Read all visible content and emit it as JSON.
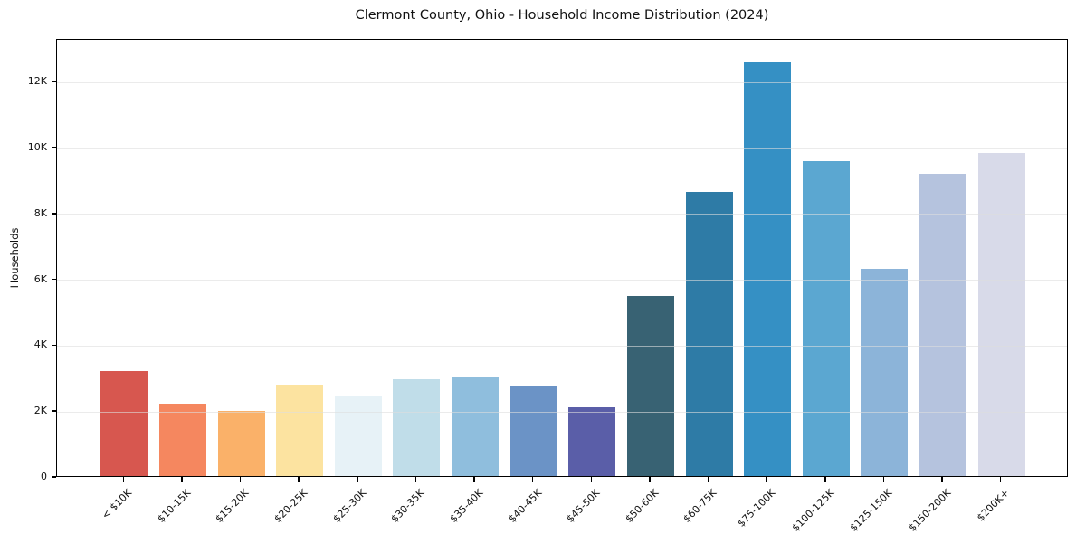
{
  "chart_data": {
    "type": "bar",
    "title": "Clermont County, Ohio - Household Income Distribution (2024)",
    "xlabel": "",
    "ylabel": "Households",
    "categories": [
      "< $10K",
      "$10-15K",
      "$15-20K",
      "$20-25K",
      "$25-30K",
      "$30-35K",
      "$35-40K",
      "$40-45K",
      "$45-50K",
      "$50-60K",
      "$60-75K",
      "$75-100K",
      "$100-125K",
      "$125-150K",
      "$150-200K",
      "$200K+"
    ],
    "values": [
      3180,
      2200,
      1990,
      2780,
      2450,
      2940,
      3000,
      2760,
      2090,
      5460,
      8620,
      12590,
      9560,
      6280,
      9170,
      9820
    ],
    "bar_colors": [
      "#d7574f",
      "#f5875f",
      "#fab169",
      "#fce3a0",
      "#e7f2f7",
      "#c0dde9",
      "#8fbedd",
      "#6b93c6",
      "#5a5ea8",
      "#386273",
      "#2e7ba6",
      "#3590c4",
      "#5ba7d1",
      "#8cb4d9",
      "#b5c3de",
      "#d8dae9"
    ],
    "ylim": [
      0,
      13300
    ],
    "yticks": {
      "values": [
        0,
        2000,
        4000,
        6000,
        8000,
        10000,
        12000
      ],
      "labels": [
        "0",
        "2K",
        "4K",
        "6K",
        "8K",
        "10K",
        "12K"
      ]
    },
    "grid": "horizontal-light",
    "legend": "none",
    "axis_color": "#000000",
    "gridline_color": "#dedede",
    "background_color": "#ffffff"
  }
}
